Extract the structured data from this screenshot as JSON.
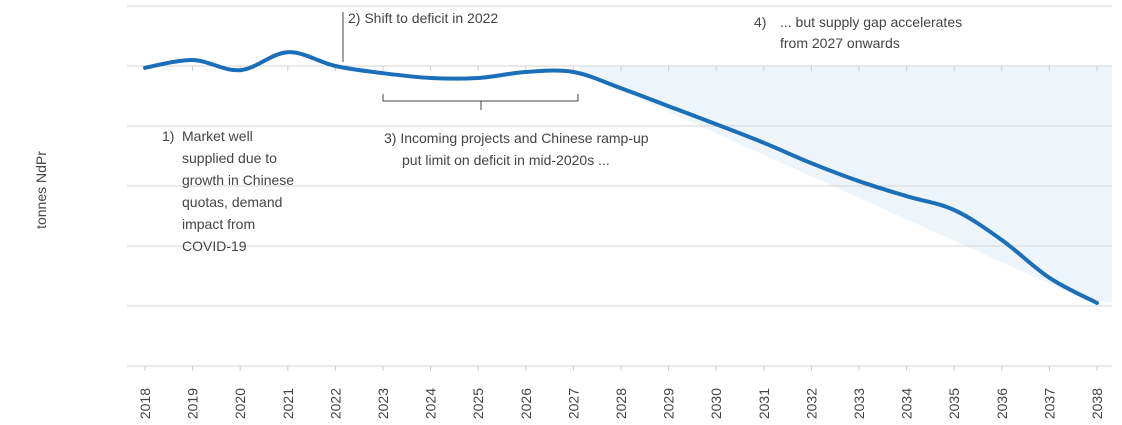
{
  "chart_data": {
    "type": "line",
    "y_label": "tonnes NdPr",
    "categories": [
      "2018",
      "2019",
      "2020",
      "2021",
      "2022",
      "2023",
      "2024",
      "2025",
      "2026",
      "2027",
      "2028",
      "2029",
      "2030",
      "2031",
      "2032",
      "2033",
      "2034",
      "2035",
      "2036",
      "2037",
      "2038"
    ],
    "series": [
      {
        "color": "#1b6fb8",
        "values": [
          -0.03,
          0.1,
          -0.07,
          0.23,
          0,
          -0.12,
          -0.2,
          -0.2,
          -0.1,
          -0.1,
          -0.37,
          -0.67,
          -0.97,
          -1.28,
          -1.62,
          -1.92,
          -2.17,
          -2.4,
          -2.9,
          -3.53,
          -3.95
        ]
      }
    ],
    "ylim": [
      -5,
      1
    ],
    "yticks": [
      -5,
      -4,
      -3,
      -2,
      -1,
      0,
      1
    ],
    "grid": true,
    "annotations": [
      "1)",
      "Market well",
      "supplied due to",
      "growth in Chinese",
      "quotas, demand",
      "impact from",
      "COVID-19",
      "2) Shift to deficit in 2022",
      "3) Incoming projects and Chinese ramp-up",
      "put limit on deficit in mid-2020s ...",
      "4)",
      "... but supply gap accelerates",
      "from 2027 onwards"
    ]
  }
}
